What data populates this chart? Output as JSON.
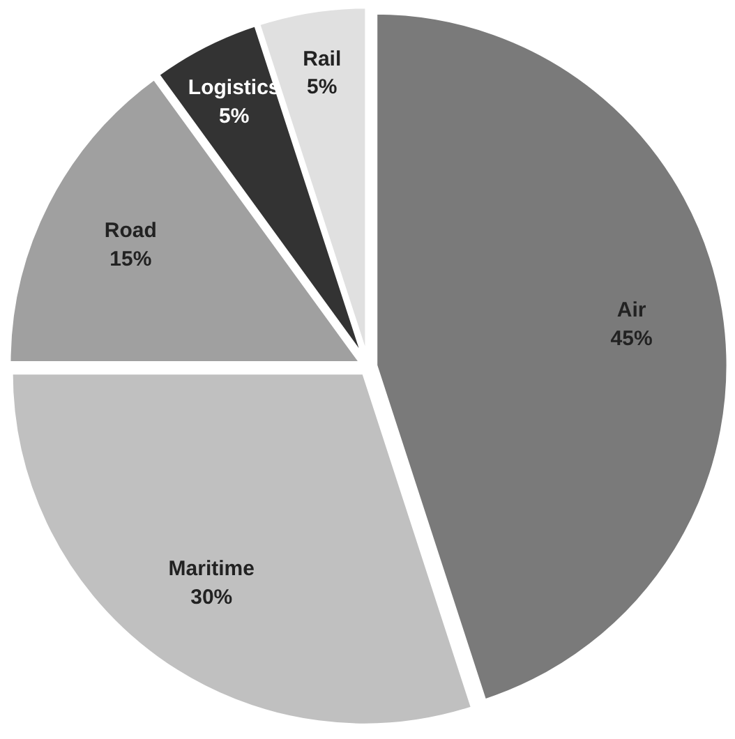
{
  "chart_data": {
    "type": "pie",
    "categories": [
      "Air",
      "Maritime",
      "Road",
      "Logistics",
      "Rail"
    ],
    "values": [
      45,
      30,
      15,
      5,
      5
    ],
    "value_labels": [
      "45%",
      "30%",
      "15%",
      "5%",
      "5%"
    ],
    "colors": [
      "#7a7a7a",
      "#c0c0c0",
      "#a0a0a0",
      "#333333",
      "#e0e0e0"
    ]
  }
}
